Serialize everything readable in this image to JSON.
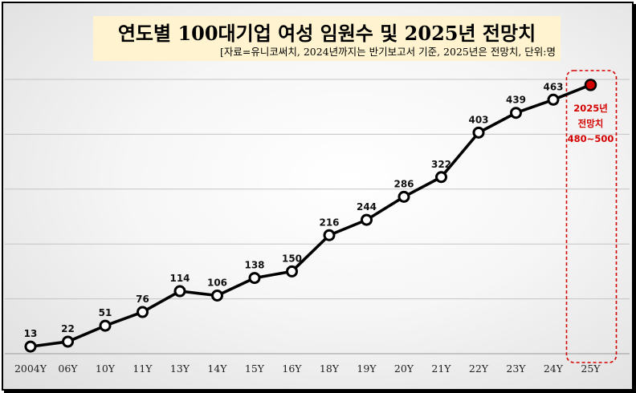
{
  "chart_data": {
    "type": "line",
    "title": "연도별 100대기업 여성 임원수 및 2025년 전망치",
    "subtitle": "[자료=유니코써치, 2024년까지는 반기보고서 기준, 2025년은 전망치, 단위:명",
    "categories": [
      "2004Y",
      "06Y",
      "10Y",
      "11Y",
      "13Y",
      "14Y",
      "15Y",
      "16Y",
      "18Y",
      "19Y",
      "20Y",
      "21Y",
      "22Y",
      "23Y",
      "24Y",
      "25Y"
    ],
    "series": [
      {
        "values": [
          13,
          22,
          51,
          76,
          114,
          106,
          138,
          150,
          216,
          244,
          286,
          322,
          403,
          439,
          463,
          490
        ]
      }
    ],
    "data_labels": [
      "13",
      "22",
      "51",
      "76",
      "114",
      "106",
      "138",
      "150",
      "216",
      "244",
      "286",
      "322",
      "403",
      "439",
      "463"
    ],
    "ylim": [
      0,
      500
    ],
    "grid": true,
    "forecast": {
      "category": "25Y",
      "label_lines": [
        "2025년",
        "전망치",
        "480~500"
      ],
      "color": "#d40000"
    },
    "colors": {
      "line": "#000000",
      "marker_fill": "#ffffff",
      "forecast": "#d40000",
      "title_bg": "#fff4cf"
    }
  }
}
